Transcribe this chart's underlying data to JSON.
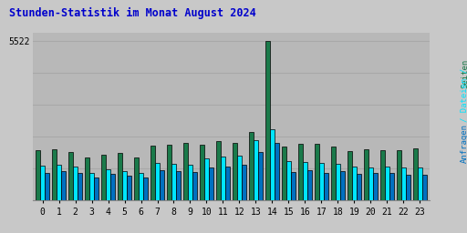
{
  "title": "Stunden-Statistik im Monat August 2024",
  "hours": [
    0,
    1,
    2,
    3,
    4,
    5,
    6,
    7,
    8,
    9,
    10,
    11,
    12,
    13,
    14,
    15,
    16,
    17,
    18,
    19,
    20,
    21,
    22,
    23
  ],
  "green_values": [
    1750,
    1780,
    1680,
    1480,
    1580,
    1650,
    1480,
    1900,
    1920,
    1980,
    1920,
    2060,
    2000,
    2380,
    5522,
    1870,
    1950,
    1950,
    1870,
    1700,
    1780,
    1750,
    1750,
    1800
  ],
  "cyan_values": [
    1200,
    1230,
    1160,
    950,
    1080,
    1020,
    960,
    1300,
    1270,
    1240,
    1460,
    1520,
    1560,
    2080,
    2460,
    1360,
    1330,
    1280,
    1270,
    1180,
    1150,
    1180,
    1150,
    1140
  ],
  "blue_values": [
    950,
    1010,
    940,
    800,
    920,
    840,
    780,
    1030,
    1000,
    990,
    1140,
    1170,
    1220,
    1680,
    1980,
    990,
    1040,
    960,
    1000,
    910,
    940,
    950,
    880,
    880
  ],
  "bar_width": 0.28,
  "green_color": "#1a7a4a",
  "cyan_color": "#00e5ff",
  "blue_color": "#0070c0",
  "bg_color": "#c8c8c8",
  "plot_bg_color": "#b8b8b8",
  "title_color": "#0000cc",
  "right_label_colors": [
    "#1a7a4a",
    "#00e5ff",
    "#0070c0"
  ],
  "grid_color": "#a8a8a8",
  "ylim_max": 5800,
  "ytick_val": 5522
}
